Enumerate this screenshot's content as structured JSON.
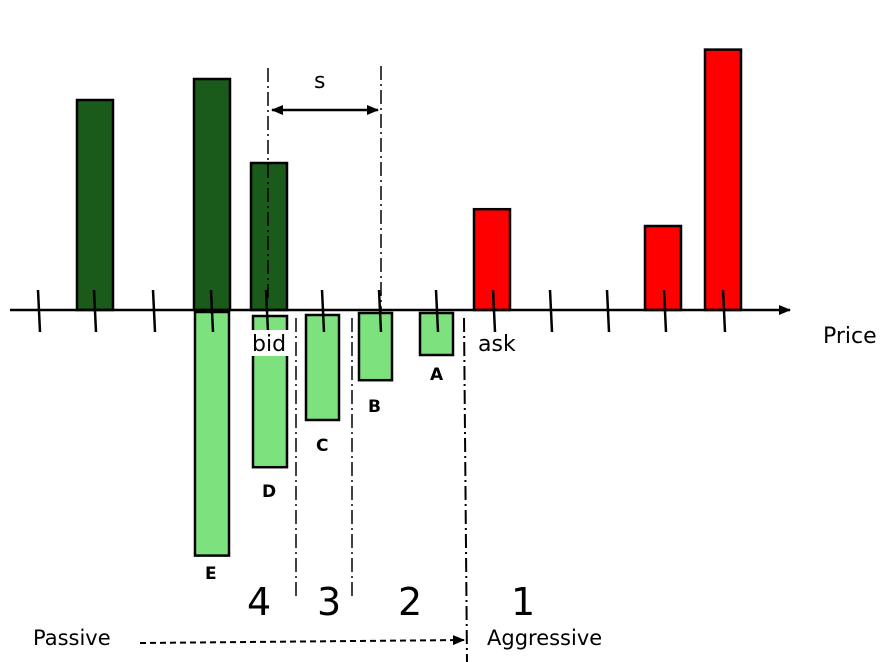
{
  "axis": {
    "label": "Price"
  },
  "colors": {
    "bid_side": "#1a5a1a",
    "ask_side": "#ff0000",
    "orders": "#7de27d"
  },
  "book": {
    "bid_depth": [
      5,
      0,
      5.5,
      3.5
    ],
    "ask_depth": [
      2.4,
      0,
      0,
      2,
      6.2
    ]
  },
  "orders": [
    {
      "label": "A",
      "depth": 1
    },
    {
      "label": "B",
      "depth": 1.6
    },
    {
      "label": "C",
      "depth": 2.5
    },
    {
      "label": "D",
      "depth": 3.6
    },
    {
      "label": "E",
      "depth": 5.8
    }
  ],
  "annotations": {
    "spread": "s",
    "bid": "bid",
    "ask": "ask",
    "zones": [
      "4",
      "3",
      "2",
      "1"
    ],
    "passive": "Passive",
    "aggressive": "Aggressive"
  }
}
